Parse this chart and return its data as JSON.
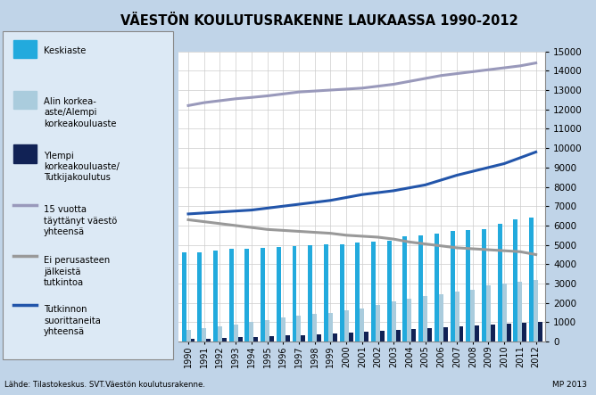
{
  "title": "VÄESTÖN KOULUTUSRAKENNE LAUKAASSA 1990-2012",
  "years": [
    1990,
    1991,
    1992,
    1993,
    1994,
    1995,
    1996,
    1997,
    1998,
    1999,
    2000,
    2001,
    2002,
    2003,
    2004,
    2005,
    2006,
    2007,
    2008,
    2009,
    2010,
    2011,
    2012
  ],
  "keskiaste": [
    4600,
    4600,
    4700,
    4800,
    4800,
    4850,
    4900,
    4950,
    5000,
    5050,
    5050,
    5100,
    5150,
    5200,
    5450,
    5500,
    5600,
    5700,
    5750,
    5800,
    6100,
    6300,
    6400
  ],
  "alin_korkea": [
    600,
    700,
    800,
    900,
    1000,
    1100,
    1250,
    1350,
    1450,
    1500,
    1600,
    1700,
    1900,
    2100,
    2200,
    2350,
    2450,
    2600,
    2700,
    2900,
    3000,
    3100,
    3200
  ],
  "ylempi_korkea": [
    150,
    170,
    200,
    230,
    250,
    280,
    310,
    340,
    370,
    410,
    450,
    500,
    550,
    600,
    650,
    700,
    750,
    800,
    850,
    900,
    950,
    990,
    1030
  ],
  "vaesto_15": [
    12200,
    12350,
    12450,
    12550,
    12620,
    12700,
    12800,
    12900,
    12950,
    13000,
    13050,
    13100,
    13200,
    13300,
    13450,
    13600,
    13750,
    13850,
    13950,
    14050,
    14150,
    14250,
    14400
  ],
  "ei_perus": [
    6300,
    6200,
    6100,
    6000,
    5900,
    5800,
    5750,
    5700,
    5650,
    5600,
    5500,
    5450,
    5400,
    5300,
    5150,
    5050,
    4950,
    4850,
    4800,
    4750,
    4700,
    4650,
    4500
  ],
  "tutkinnon_suor": [
    6600,
    6650,
    6700,
    6750,
    6800,
    6900,
    7000,
    7100,
    7200,
    7300,
    7450,
    7600,
    7700,
    7800,
    7950,
    8100,
    8350,
    8600,
    8800,
    9000,
    9200,
    9500,
    9800
  ],
  "footnote": "Lähde: Tilastokeskus. SVT.Väestön koulutusrakenne.",
  "mp": "MP 2013",
  "bg_color": "#c0d4e8",
  "plot_bg": "#ffffff",
  "legend_bg": "#dce9f5",
  "line_vaesto_color": "#9999bb",
  "line_ei_perus_color": "#999999",
  "line_tutkinnon_color": "#2255aa",
  "bar_keskiaste_color": "#22aadd",
  "bar_alin_color": "#aaccdd",
  "bar_ylempi_color": "#112255",
  "ylim": [
    0,
    15000
  ]
}
